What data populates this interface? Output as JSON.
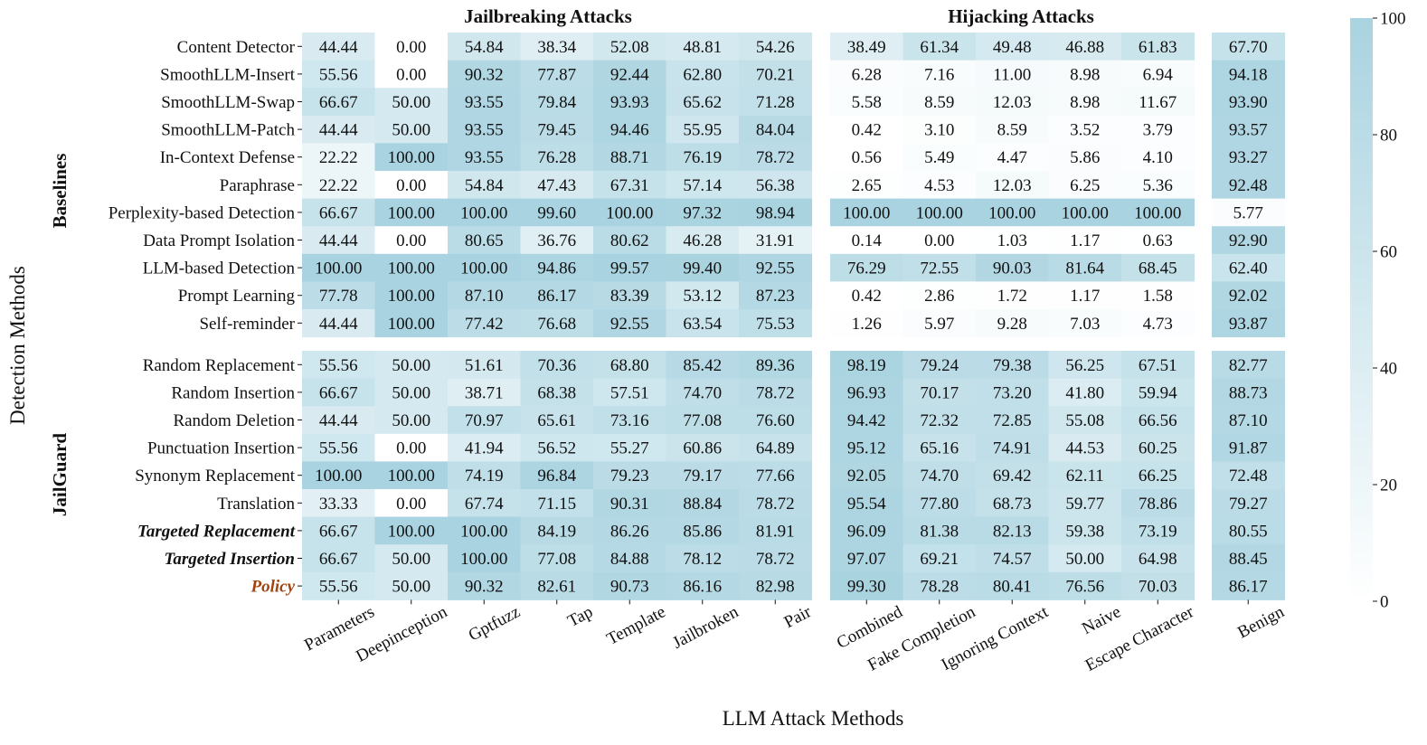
{
  "chart_data": {
    "type": "heatmap",
    "xlabel": "LLM Attack Methods",
    "ylabel": "Detection Methods",
    "column_groups": [
      {
        "title": "Jailbreaking Attacks",
        "columns": [
          "Parameters",
          "Deepinception",
          "Gptfuzz",
          "Tap",
          "Template",
          "Jailbroken",
          "Pair"
        ]
      },
      {
        "title": "Hijacking Attacks",
        "columns": [
          "Combined",
          "Fake Completion",
          "Ignoring Context",
          "Naive",
          "Escape Character"
        ]
      },
      {
        "title": "",
        "columns": [
          "Benign"
        ]
      }
    ],
    "row_groups": [
      {
        "title": "Baselines",
        "rows": [
          {
            "label": "Content Detector",
            "style": "normal",
            "values": [
              44.44,
              0.0,
              54.84,
              38.34,
              52.08,
              48.81,
              54.26,
              38.49,
              61.34,
              49.48,
              46.88,
              61.83,
              67.7
            ]
          },
          {
            "label": "SmoothLLM-Insert",
            "style": "normal",
            "values": [
              55.56,
              0.0,
              90.32,
              77.87,
              92.44,
              62.8,
              70.21,
              6.28,
              7.16,
              11.0,
              8.98,
              6.94,
              94.18
            ]
          },
          {
            "label": "SmoothLLM-Swap",
            "style": "normal",
            "values": [
              66.67,
              50.0,
              93.55,
              79.84,
              93.93,
              65.62,
              71.28,
              5.58,
              8.59,
              12.03,
              8.98,
              11.67,
              93.9
            ]
          },
          {
            "label": "SmoothLLM-Patch",
            "style": "normal",
            "values": [
              44.44,
              50.0,
              93.55,
              79.45,
              94.46,
              55.95,
              84.04,
              0.42,
              3.1,
              8.59,
              3.52,
              3.79,
              93.57
            ]
          },
          {
            "label": "In-Context Defense",
            "style": "normal",
            "values": [
              22.22,
              100.0,
              93.55,
              76.28,
              88.71,
              76.19,
              78.72,
              0.56,
              5.49,
              4.47,
              5.86,
              4.1,
              93.27
            ]
          },
          {
            "label": "Paraphrase",
            "style": "normal",
            "values": [
              22.22,
              0.0,
              54.84,
              47.43,
              67.31,
              57.14,
              56.38,
              2.65,
              4.53,
              12.03,
              6.25,
              5.36,
              92.48
            ]
          },
          {
            "label": "Perplexity-based Detection",
            "style": "normal",
            "values": [
              66.67,
              100.0,
              100.0,
              99.6,
              100.0,
              97.32,
              98.94,
              100.0,
              100.0,
              100.0,
              100.0,
              100.0,
              5.77
            ]
          },
          {
            "label": "Data Prompt Isolation",
            "style": "normal",
            "values": [
              44.44,
              0.0,
              80.65,
              36.76,
              80.62,
              46.28,
              31.91,
              0.14,
              0.0,
              1.03,
              1.17,
              0.63,
              92.9
            ]
          },
          {
            "label": "LLM-based Detection",
            "style": "normal",
            "values": [
              100.0,
              100.0,
              100.0,
              94.86,
              99.57,
              99.4,
              92.55,
              76.29,
              72.55,
              90.03,
              81.64,
              68.45,
              62.4
            ]
          },
          {
            "label": "Prompt Learning",
            "style": "normal",
            "values": [
              77.78,
              100.0,
              87.1,
              86.17,
              83.39,
              53.12,
              87.23,
              0.42,
              2.86,
              1.72,
              1.17,
              1.58,
              92.02
            ]
          },
          {
            "label": "Self-reminder",
            "style": "normal",
            "values": [
              44.44,
              100.0,
              77.42,
              76.68,
              92.55,
              63.54,
              75.53,
              1.26,
              5.97,
              9.28,
              7.03,
              4.73,
              93.87
            ]
          }
        ]
      },
      {
        "title": "JailGuard",
        "rows": [
          {
            "label": "Random Replacement",
            "style": "normal",
            "values": [
              55.56,
              50.0,
              51.61,
              70.36,
              68.8,
              85.42,
              89.36,
              98.19,
              79.24,
              79.38,
              56.25,
              67.51,
              82.77
            ]
          },
          {
            "label": "Random Insertion",
            "style": "normal",
            "values": [
              66.67,
              50.0,
              38.71,
              68.38,
              57.51,
              74.7,
              78.72,
              96.93,
              70.17,
              73.2,
              41.8,
              59.94,
              88.73
            ]
          },
          {
            "label": "Random Deletion",
            "style": "normal",
            "values": [
              44.44,
              50.0,
              70.97,
              65.61,
              73.16,
              77.08,
              76.6,
              94.42,
              72.32,
              72.85,
              55.08,
              66.56,
              87.1
            ]
          },
          {
            "label": "Punctuation Insertion",
            "style": "normal",
            "values": [
              55.56,
              0.0,
              41.94,
              56.52,
              55.27,
              60.86,
              64.89,
              95.12,
              65.16,
              74.91,
              44.53,
              60.25,
              91.87
            ]
          },
          {
            "label": "Synonym Replacement",
            "style": "normal",
            "values": [
              100.0,
              100.0,
              74.19,
              96.84,
              79.23,
              79.17,
              77.66,
              92.05,
              74.7,
              69.42,
              62.11,
              66.25,
              72.48
            ]
          },
          {
            "label": "Translation",
            "style": "normal",
            "values": [
              33.33,
              0.0,
              67.74,
              71.15,
              90.31,
              88.84,
              78.72,
              95.54,
              77.8,
              68.73,
              59.77,
              78.86,
              79.27
            ]
          },
          {
            "label": "Targeted Replacement",
            "style": "emphasis",
            "values": [
              66.67,
              100.0,
              100.0,
              84.19,
              86.26,
              85.86,
              81.91,
              96.09,
              81.38,
              82.13,
              59.38,
              73.19,
              80.55
            ]
          },
          {
            "label": "Targeted Insertion",
            "style": "emphasis",
            "values": [
              66.67,
              50.0,
              100.0,
              77.08,
              84.88,
              78.12,
              78.72,
              97.07,
              69.21,
              74.57,
              50.0,
              64.98,
              88.45
            ]
          },
          {
            "label": "Policy",
            "style": "highlight",
            "values": [
              55.56,
              50.0,
              90.32,
              82.61,
              90.73,
              86.16,
              82.98,
              99.3,
              78.28,
              80.41,
              76.56,
              70.03,
              86.17
            ]
          }
        ]
      }
    ],
    "value_format": "2 decimals",
    "colorbar": {
      "min": 0,
      "max": 100,
      "ticks": [
        0,
        20,
        40,
        60,
        80,
        100
      ],
      "low_color": "#ffffff",
      "high_color": "#a9d3e0",
      "placement": "right"
    },
    "grid": false,
    "legend": "colorbar-right"
  },
  "colors": {
    "highlight_label": "#a0450f",
    "text": "#111111",
    "background": "#ffffff"
  }
}
